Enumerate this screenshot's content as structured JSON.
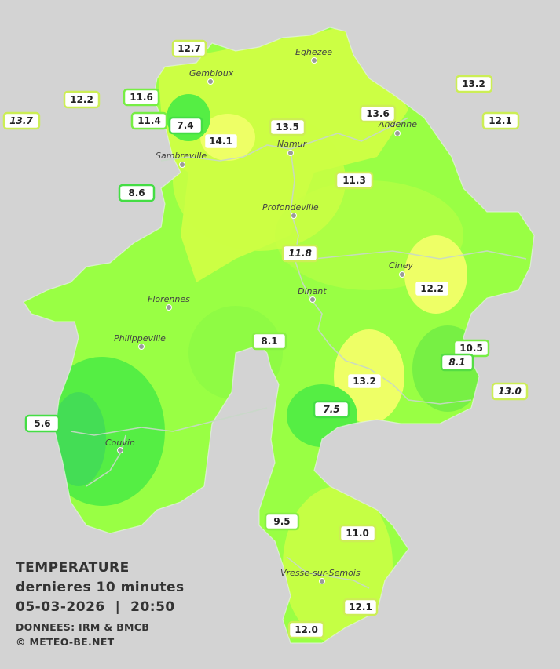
{
  "legend": {
    "title": "TEMPERATURE",
    "subtitle": "dernieres 10 minutes",
    "datetime": "05-03-2026  |  20:50",
    "source": "DONNEES: IRM & BMCB",
    "copyright": "© METEO-BE.NET"
  },
  "colors": {
    "background": "#d3d3d3",
    "cold": "#44ee44",
    "mild": "#99ff44",
    "warm": "#ccff44",
    "warmest": "#eeff66",
    "box_border_cold": "#44dd44",
    "box_border_warm": "#ccee55"
  },
  "cities": [
    {
      "name": "Eghezee"
    },
    {
      "name": "Gembloux"
    },
    {
      "name": "Andenne"
    },
    {
      "name": "Namur"
    },
    {
      "name": "Sambreville"
    },
    {
      "name": "Profondeville"
    },
    {
      "name": "Ciney"
    },
    {
      "name": "Florennes"
    },
    {
      "name": "Dinant"
    },
    {
      "name": "Philippeville"
    },
    {
      "name": "Couvin"
    },
    {
      "name": "Vresse-sur-Semois"
    }
  ],
  "stations": [
    {
      "value": "12.7"
    },
    {
      "value": "13.2"
    },
    {
      "value": "12.2"
    },
    {
      "value": "11.6"
    },
    {
      "value": "13.6"
    },
    {
      "value": "12.1"
    },
    {
      "value": "13.7"
    },
    {
      "value": "11.4"
    },
    {
      "value": "7.4"
    },
    {
      "value": "13.5"
    },
    {
      "value": "14.1"
    },
    {
      "value": "11.3"
    },
    {
      "value": "8.6"
    },
    {
      "value": "11.8"
    },
    {
      "value": "12.2"
    },
    {
      "value": "10.5"
    },
    {
      "value": "8.1"
    },
    {
      "value": "8.1"
    },
    {
      "value": "13.2"
    },
    {
      "value": "13.0"
    },
    {
      "value": "5.6"
    },
    {
      "value": "7.5"
    },
    {
      "value": "9.5"
    },
    {
      "value": "11.0"
    },
    {
      "value": "12.1"
    },
    {
      "value": "12.0"
    }
  ]
}
